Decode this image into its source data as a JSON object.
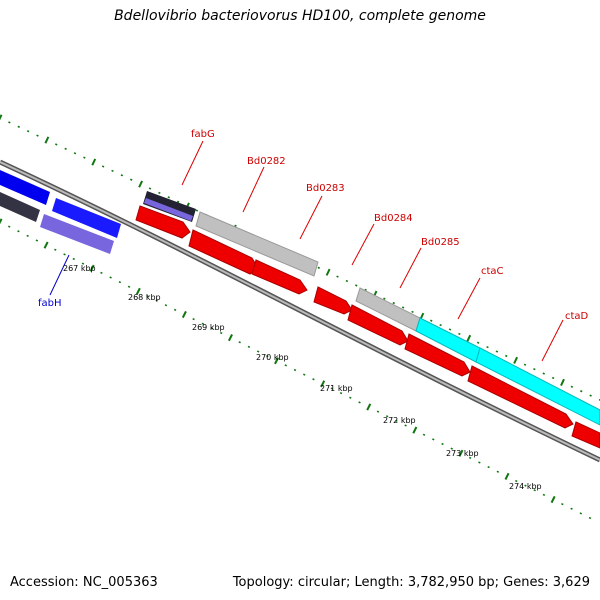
{
  "title": "Bdellovibrio bacteriovorus HD100, complete genome",
  "footer": {
    "accession_label": "Accession:",
    "accession": "NC_005363",
    "topology_label": "Topology:",
    "topology": "circular",
    "length_label": "Length:",
    "length": "3,782,950 bp",
    "genes_label": "Genes:",
    "genes": "3,629"
  },
  "scale_labels": [
    "267 kbp",
    "268 kbp",
    "269 kbp",
    "270 kbp",
    "271 kbp",
    "272 kbp",
    "273 kbp",
    "274 kbp"
  ],
  "genes": [
    {
      "name": "fabH",
      "color": "#0000cc",
      "feature_color": "#7766dd"
    },
    {
      "name": "fabG",
      "color": "#cc0000",
      "feature_color": "#ee0000"
    },
    {
      "name": "Bd0282",
      "color": "#cc0000",
      "feature_color": "#ee0000"
    },
    {
      "name": "Bd0283",
      "color": "#cc0000",
      "feature_color": "#ee0000"
    },
    {
      "name": "Bd0284",
      "color": "#cc0000",
      "feature_color": "#ee0000"
    },
    {
      "name": "Bd0285",
      "color": "#cc0000",
      "feature_color": "#ee0000"
    },
    {
      "name": "ctaC",
      "color": "#cc0000",
      "feature_color": "#ee0000"
    },
    {
      "name": "ctaD",
      "color": "#cc0000",
      "feature_color": "#ee0000"
    }
  ],
  "colors": {
    "backbone": "#888888",
    "tick": "#117711",
    "cds_forward": "#0000ee",
    "cds_reverse_blue": "#7766dd",
    "cds_red": "#ee0000",
    "gray_feature": "#c0c0c0",
    "cyan_feature": "#00ffff"
  }
}
